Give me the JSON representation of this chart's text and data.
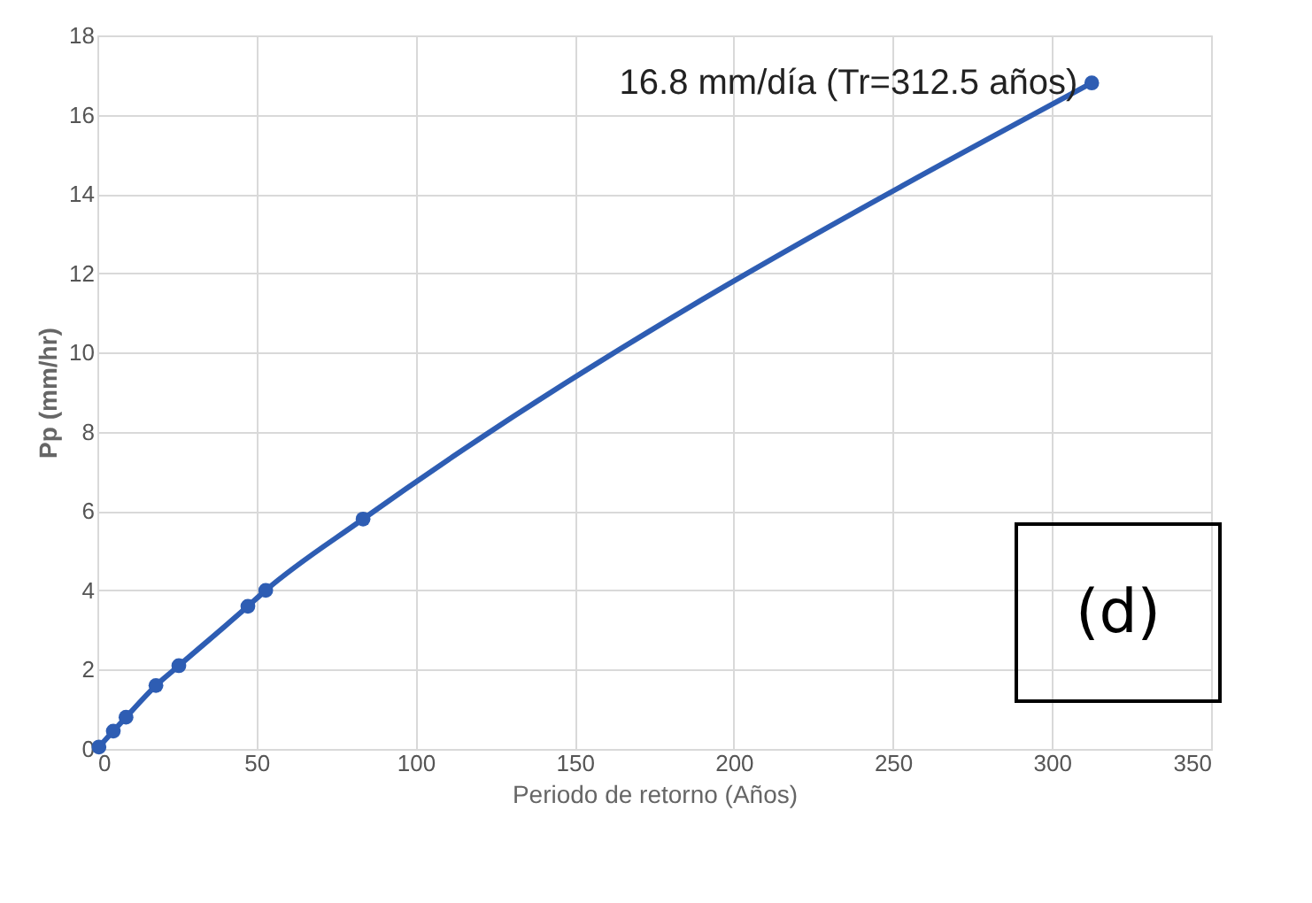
{
  "chart_data": {
    "type": "line",
    "xlabel": "Periodo de retorno (Años)",
    "ylabel": "Pp (mm/hr)",
    "x": [
      0.5,
      5,
      9,
      18.4,
      25.6,
      47.3,
      52.9,
      83.5,
      312.5
    ],
    "series": [
      {
        "color": "#2e5db3",
        "values": [
          0.05,
          0.45,
          0.8,
          1.6,
          2.1,
          3.6,
          4.0,
          5.8,
          16.8
        ]
      }
    ],
    "xlim": [
      0,
      350
    ],
    "xticks": [
      0,
      50,
      100,
      150,
      200,
      250,
      300,
      350
    ],
    "ylim": [
      0,
      18
    ],
    "yticks": [
      0,
      2,
      4,
      6,
      8,
      10,
      12,
      14,
      16,
      18
    ],
    "grid": true,
    "marker": "circle",
    "line_style": "solid",
    "annotations": [
      {
        "text": "16.8 mm/día (Tr=312.5 años)",
        "x": 312.5,
        "y": 16.8
      },
      "(d)"
    ]
  }
}
